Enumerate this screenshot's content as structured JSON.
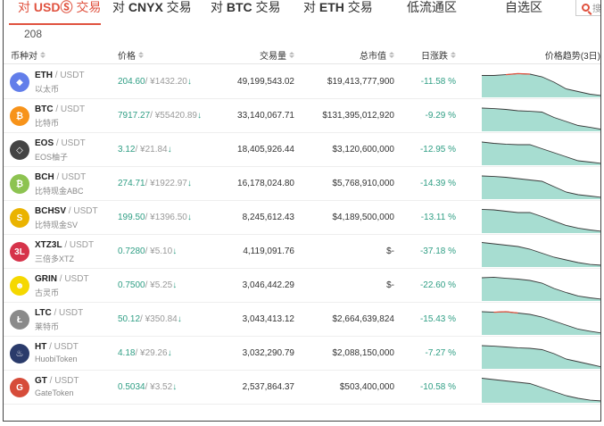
{
  "tabs": [
    {
      "prefix": "对 ",
      "currency": "USDⓈ",
      "suffix": " 交易",
      "active": true
    },
    {
      "prefix": "对 ",
      "currency": "CNYX",
      "suffix": " 交易",
      "active": false
    },
    {
      "prefix": "对 ",
      "currency": "BTC",
      "suffix": " 交易",
      "active": false
    },
    {
      "prefix": "对 ",
      "currency": "ETH",
      "suffix": " 交易",
      "active": false
    },
    {
      "prefix": "",
      "currency": "",
      "suffix": "低流通区",
      "active": false
    },
    {
      "prefix": "",
      "currency": "",
      "suffix": "自选区",
      "active": false
    }
  ],
  "tab_count": "208",
  "search": {
    "text": "搜"
  },
  "header": {
    "pair": "币种对",
    "price": "价格",
    "volume": "交易量",
    "market_cap": "总市值",
    "change": "日涨跌",
    "trend": "价格趋势(3日)"
  },
  "colors": {
    "accent": "#e0523f",
    "down_green": "#2f9e84",
    "spark_fill": "#a7ddd1",
    "spark_up": "#e0523f"
  },
  "rows": [
    {
      "base": "ETH",
      "quote": " / USDT",
      "cn": "以太币",
      "price": "204.60",
      "cny": "/ ¥1432.20",
      "arrow": "↓",
      "volume": "49,199,543.02",
      "cap": "$19,413,777,900",
      "change": "-11.58 %",
      "icon": "ethereum-icon",
      "icon_color": "#627eea",
      "icon_char": "◆"
    },
    {
      "base": "BTC",
      "quote": " / USDT",
      "cn": "比特币",
      "price": "7917.27",
      "cny": "/ ¥55420.89",
      "arrow": "↓",
      "volume": "33,140,067.71",
      "cap": "$131,395,012,920",
      "change": "-9.29 %",
      "icon": "bitcoin-icon",
      "icon_color": "#f7931a",
      "icon_char": "₿"
    },
    {
      "base": "EOS",
      "quote": " / USDT",
      "cn": "EOS柚子",
      "price": "3.12",
      "cny": "/ ¥21.84",
      "arrow": "↓",
      "volume": "18,405,926.44",
      "cap": "$3,120,600,000",
      "change": "-12.95 %",
      "icon": "eos-icon",
      "icon_color": "#444444",
      "icon_char": "◇"
    },
    {
      "base": "BCH",
      "quote": " / USDT",
      "cn": "比特现金ABC",
      "price": "274.71",
      "cny": "/ ¥1922.97",
      "arrow": "↓",
      "volume": "16,178,024.80",
      "cap": "$5,768,910,000",
      "change": "-14.39 %",
      "icon": "bitcoin-cash-icon",
      "icon_color": "#8dc351",
      "icon_char": "₿"
    },
    {
      "base": "BCHSV",
      "quote": " / USDT",
      "cn": "比特现金SV",
      "price": "199.50",
      "cny": "/ ¥1396.50",
      "arrow": "↓",
      "volume": "8,245,612.43",
      "cap": "$4,189,500,000",
      "change": "-13.11 %",
      "icon": "bitcoin-sv-icon",
      "icon_color": "#eab300",
      "icon_char": "S"
    },
    {
      "base": "XTZ3L",
      "quote": " / USDT",
      "cn": "三倍多XTZ",
      "price": "0.7280",
      "cny": "/ ¥5.10",
      "arrow": "↓",
      "volume": "4,119,091.76",
      "cap": "$-",
      "change": "-37.18 %",
      "icon": "xtz3l-icon",
      "icon_color": "#d6334a",
      "icon_char": "3L"
    },
    {
      "base": "GRIN",
      "quote": " / USDT",
      "cn": "古灵币",
      "price": "0.7500",
      "cny": "/ ¥5.25",
      "arrow": "↓",
      "volume": "3,046,442.29",
      "cap": "$-",
      "change": "-22.60 %",
      "icon": "grin-icon",
      "icon_color": "#f5d800",
      "icon_char": "☻"
    },
    {
      "base": "LTC",
      "quote": " / USDT",
      "cn": "莱特币",
      "price": "50.12",
      "cny": "/ ¥350.84",
      "arrow": "↓",
      "volume": "3,043,413.12",
      "cap": "$2,664,639,824",
      "change": "-15.43 %",
      "icon": "litecoin-icon",
      "icon_color": "#8a8a8a",
      "icon_char": "Ł"
    },
    {
      "base": "HT",
      "quote": " / USDT",
      "cn": "HuobiToken",
      "price": "4.18",
      "cny": "/ ¥29.26",
      "arrow": "↓",
      "volume": "3,032,290.79",
      "cap": "$2,088,150,000",
      "change": "-7.27 %",
      "icon": "huobi-token-icon",
      "icon_color": "#2a3b6b",
      "icon_char": "♨"
    },
    {
      "base": "GT",
      "quote": " / USDT",
      "cn": "GateToken",
      "price": "0.5034",
      "cny": "/ ¥3.52",
      "arrow": "↓",
      "volume": "2,537,864.37",
      "cap": "$503,400,000",
      "change": "-10.58 %",
      "icon": "gate-token-icon",
      "icon_color": "#d64c3a",
      "icon_char": "G"
    }
  ]
}
